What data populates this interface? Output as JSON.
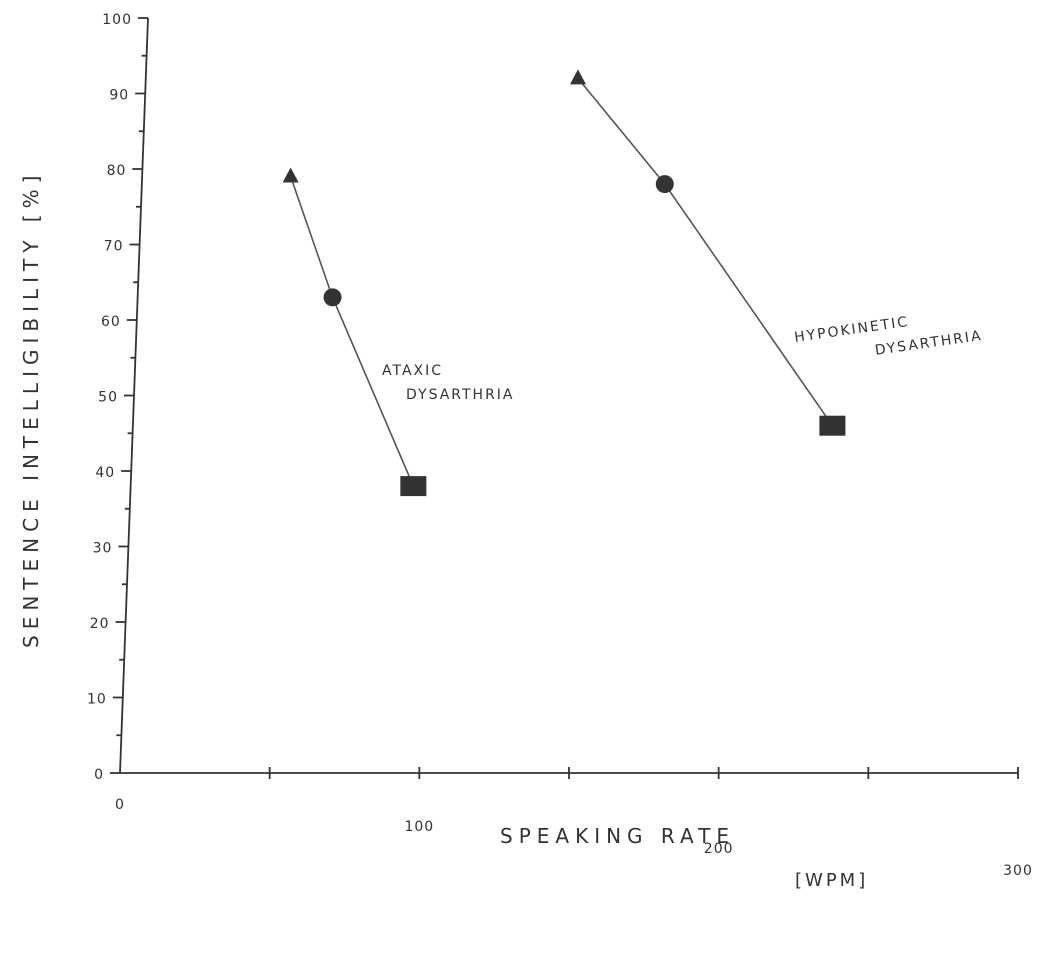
{
  "chart_data": {
    "type": "line",
    "xlabel": "SPEAKING RATE",
    "xlabel_unit": "[WPM]",
    "ylabel": "SENTENCE INTELLIGIBILITY [%]",
    "xlim": [
      0,
      300
    ],
    "ylim": [
      0,
      100
    ],
    "x_ticks": [
      0,
      100,
      200,
      300
    ],
    "y_ticks": [
      0,
      10,
      20,
      30,
      40,
      50,
      60,
      70,
      80,
      90,
      100
    ],
    "grid": false,
    "legend": "none",
    "series": [
      {
        "name": "ATAXIC DYSARTHRIA",
        "label_lines": [
          "ATAXIC",
          "DYSARTHRIA"
        ],
        "points": [
          {
            "x": 57,
            "y": 79,
            "marker": "triangle"
          },
          {
            "x": 71,
            "y": 63,
            "marker": "circle"
          },
          {
            "x": 98,
            "y": 38,
            "marker": "square"
          }
        ]
      },
      {
        "name": "HYPOKINETIC DYSARTHRIA",
        "label_lines": [
          "HYPOKINETIC",
          "DYSARTHRIA"
        ],
        "points": [
          {
            "x": 153,
            "y": 92,
            "marker": "triangle"
          },
          {
            "x": 182,
            "y": 78,
            "marker": "circle"
          },
          {
            "x": 238,
            "y": 46,
            "marker": "square"
          }
        ]
      }
    ]
  }
}
